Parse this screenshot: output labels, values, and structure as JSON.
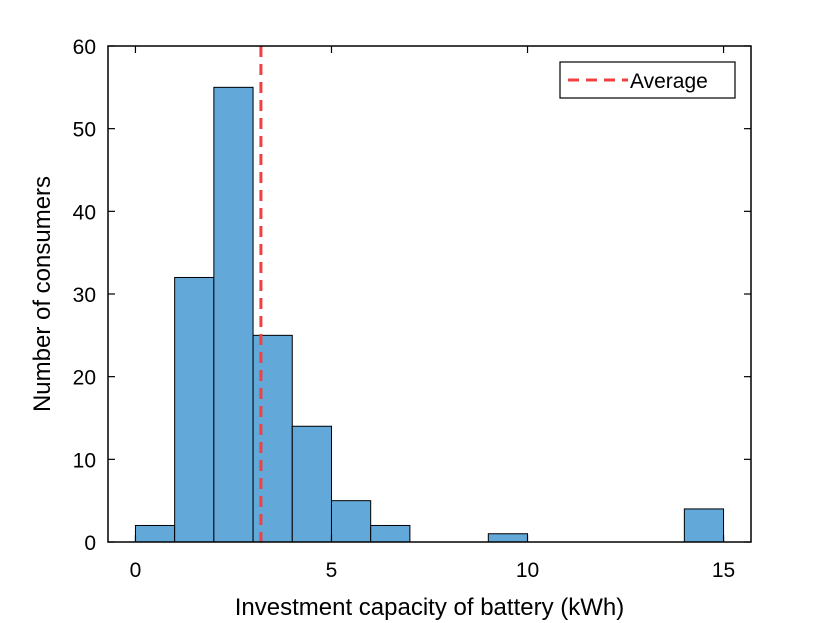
{
  "chart_data": {
    "type": "bar",
    "xlabel": "Investment capacity of battery (kWh)",
    "ylabel": "Number of consumers",
    "xlim": [
      -0.7,
      15.7
    ],
    "ylim": [
      0,
      60
    ],
    "xticks": [
      0,
      5,
      10,
      15
    ],
    "yticks": [
      0,
      10,
      20,
      30,
      40,
      50,
      60
    ],
    "bin_edges": [
      0,
      1,
      2,
      3,
      4,
      5,
      6,
      7,
      8,
      9,
      10,
      11,
      12,
      13,
      14,
      15
    ],
    "values": [
      2,
      32,
      55,
      25,
      14,
      5,
      2,
      0,
      0,
      1,
      0,
      0,
      0,
      0,
      4
    ],
    "bar_color": "#62a8d8",
    "average": 3.2,
    "average_color": "#f24040",
    "legend": {
      "label": "Average",
      "placement": "top-right"
    }
  }
}
